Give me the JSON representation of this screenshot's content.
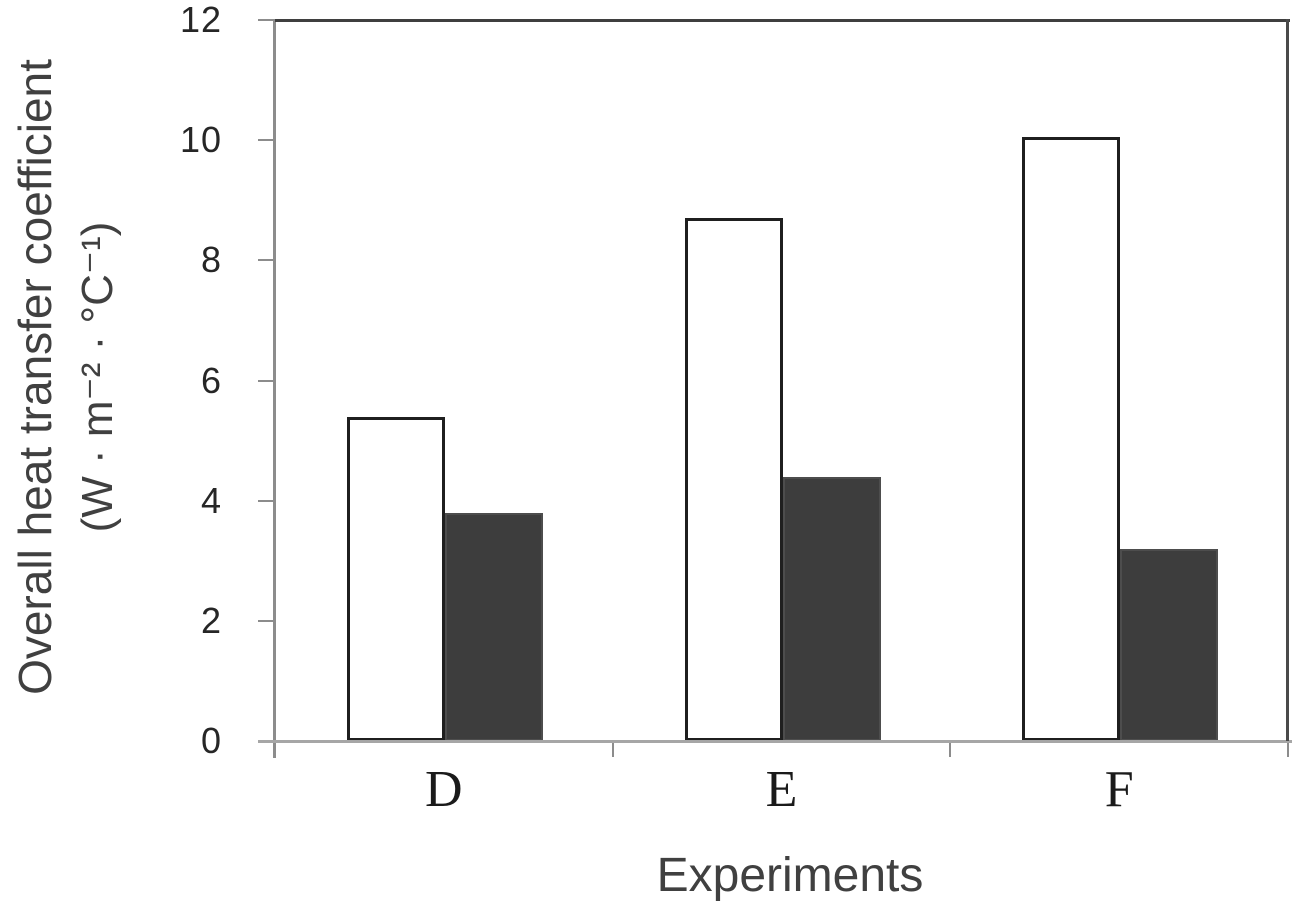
{
  "chart_data": {
    "type": "bar",
    "title": "",
    "categories": [
      "D",
      "E",
      "F"
    ],
    "series": [
      {
        "name": "open-bars",
        "style": "open",
        "fill": "#ffffff",
        "border": "#1f1f1f",
        "values": [
          5.4,
          8.7,
          10.05
        ]
      },
      {
        "name": "filled-bars",
        "style": "filled",
        "fill": "#3d3d3d",
        "border": "#4d4d4d",
        "values": [
          3.8,
          4.4,
          3.2
        ]
      }
    ],
    "xlabel": "Experiments",
    "ylabel_line1": "Overall heat transfer coefficient",
    "ylabel_line2": "(W · m⁻² · °C⁻¹)",
    "ylim": [
      0,
      12
    ],
    "yticks": [
      0,
      2,
      4,
      6,
      8,
      10,
      12
    ],
    "grid": "off",
    "legend": "none"
  },
  "colors": {
    "axis_gray": "#8c8c8c",
    "baseline_gray": "#a6a6a6",
    "frame_dark": "#3f3f3f",
    "tick_text": "#262626",
    "title_text": "#404040",
    "category_text": "#1a1a1a"
  }
}
